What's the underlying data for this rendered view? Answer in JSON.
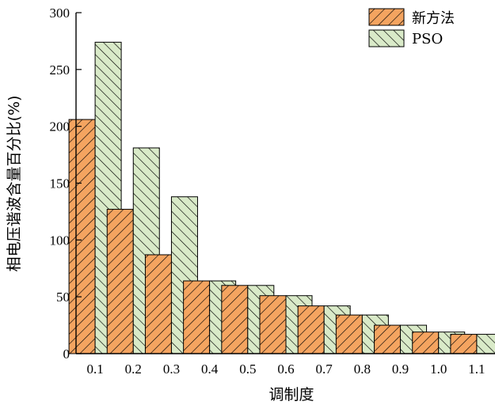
{
  "chart_data": {
    "type": "bar",
    "title": "",
    "xlabel": "调制度",
    "ylabel": "相电压谐波含量百分比(%)",
    "categories": [
      "0.1",
      "0.2",
      "0.3",
      "0.4",
      "0.5",
      "0.6",
      "0.7",
      "0.8",
      "0.9",
      "1.0",
      "1.1"
    ],
    "series": [
      {
        "name": "新方法",
        "color": "#F4A460",
        "hatch": "forward-diagonal",
        "values": [
          206,
          127,
          87,
          64,
          60,
          51,
          42,
          34,
          25,
          19,
          17
        ]
      },
      {
        "name": "PSO",
        "color": "#D9EAC8",
        "hatch": "backward-diagonal",
        "values": [
          274,
          181,
          138,
          64,
          60,
          51,
          42,
          34,
          25,
          19,
          17
        ]
      }
    ],
    "ylim": [
      0,
      300
    ],
    "yticks": [
      "0",
      "50",
      "100",
      "150",
      "200",
      "250",
      "300"
    ],
    "grid": false,
    "legend_position": "top-right"
  }
}
